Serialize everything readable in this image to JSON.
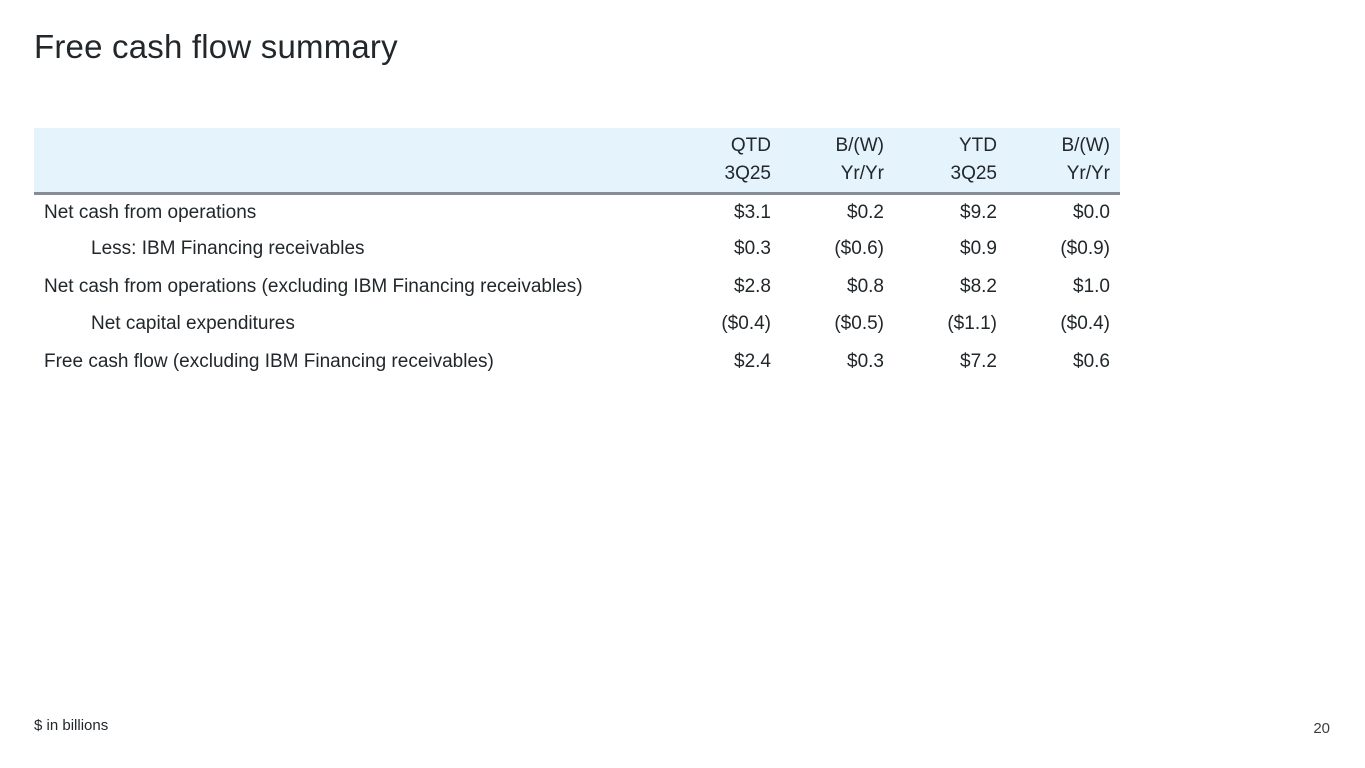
{
  "slide": {
    "title": "Free cash flow summary",
    "footnote": "$ in billions",
    "page_number": "20"
  },
  "table": {
    "columns": [
      {
        "line1": "QTD",
        "line2": "3Q25"
      },
      {
        "line1": "B/(W)",
        "line2": "Yr/Yr"
      },
      {
        "line1": "YTD",
        "line2": "3Q25"
      },
      {
        "line1": "B/(W)",
        "line2": "Yr/Yr"
      }
    ],
    "rows": [
      {
        "label": "Net cash from operations",
        "indent": false,
        "values": [
          "$3.1",
          "$0.2",
          "$9.2",
          "$0.0"
        ]
      },
      {
        "label": "Less: IBM Financing receivables",
        "indent": true,
        "values": [
          "$0.3",
          "($0.6)",
          "$0.9",
          "($0.9)"
        ]
      },
      {
        "label": "Net cash from operations (excluding IBM Financing receivables)",
        "indent": false,
        "values": [
          "$2.8",
          "$0.8",
          "$8.2",
          "$1.0"
        ]
      },
      {
        "label": "Net capital expenditures",
        "indent": true,
        "values": [
          "($0.4)",
          "($0.5)",
          "($1.1)",
          "($0.4)"
        ]
      },
      {
        "label": "Free cash flow (excluding IBM Financing receivables)",
        "indent": false,
        "values": [
          "$2.4",
          "$0.3",
          "$7.2",
          "$0.6"
        ]
      }
    ]
  },
  "colors": {
    "header_background": "#e4f3fc",
    "header_underline": "#878d96",
    "text": "#21272a"
  }
}
